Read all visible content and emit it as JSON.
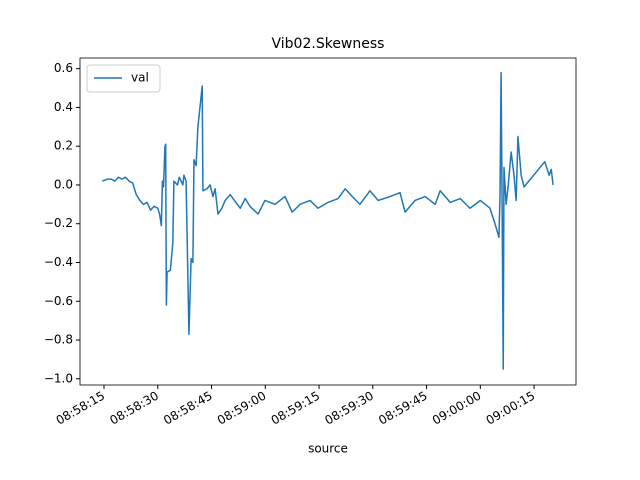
{
  "chart_data": {
    "type": "line",
    "title": "Vib02.Skewness",
    "xlabel": "source",
    "x": [
      32294.5,
      32296,
      32297,
      32298,
      32299,
      32300,
      32301,
      32302,
      32303,
      32304,
      32305,
      32306,
      32307,
      32308,
      32309,
      32310,
      32310.5,
      32311,
      32311.3,
      32311.6,
      32312,
      32312.2,
      32312.4,
      32312.6,
      32313.5,
      32314.2,
      32314.5,
      32315.5,
      32316,
      32317,
      32317.3,
      32317.9,
      32318.7,
      32319.3,
      32319.8,
      32320.1,
      32320.7,
      32321.2,
      32322.4,
      32322.6,
      32323.7,
      32324.6,
      32325.4,
      32326,
      32326.8,
      32327.9,
      32328.8,
      32330.2,
      32333,
      32334.4,
      32335.7,
      32338,
      32339.9,
      32342.7,
      32345.5,
      32347.5,
      32349.7,
      32352.5,
      32354.7,
      32357.5,
      32360.3,
      32362.3,
      32364.3,
      32366.4,
      32369.2,
      32371.5,
      32374.8,
      32377.6,
      32379,
      32381.8,
      32384.6,
      32387.4,
      32388.8,
      32391.6,
      32394.4,
      32397.1,
      32400,
      32402.7,
      32404.1,
      32405.2,
      32405.5,
      32405.8,
      32406.1,
      32406.4,
      32406.6,
      32407.2,
      32407.8,
      32408.6,
      32409.4,
      32410,
      32410.5,
      32411.4,
      32412.2,
      32418,
      32419.2,
      32419.8,
      32420.3
    ],
    "series": [
      {
        "name": "val",
        "color": "#1f77b4",
        "values": [
          0.02,
          0.03,
          0.03,
          0.02,
          0.04,
          0.03,
          0.04,
          0.02,
          0.01,
          -0.05,
          -0.08,
          -0.1,
          -0.09,
          -0.13,
          -0.11,
          -0.12,
          -0.15,
          -0.21,
          0.02,
          -0.01,
          0.2,
          0.21,
          -0.62,
          -0.45,
          -0.44,
          -0.3,
          0.02,
          0.0,
          0.04,
          0.0,
          0.05,
          0.02,
          -0.77,
          -0.38,
          -0.4,
          0.13,
          0.1,
          0.3,
          0.51,
          -0.03,
          -0.02,
          0.0,
          -0.06,
          -0.02,
          -0.15,
          -0.12,
          -0.08,
          -0.05,
          -0.12,
          -0.07,
          -0.11,
          -0.15,
          -0.08,
          -0.1,
          -0.06,
          -0.14,
          -0.1,
          -0.08,
          -0.12,
          -0.09,
          -0.07,
          -0.02,
          -0.06,
          -0.1,
          -0.03,
          -0.08,
          -0.06,
          -0.04,
          -0.14,
          -0.08,
          -0.06,
          -0.1,
          -0.03,
          -0.09,
          -0.07,
          -0.12,
          -0.08,
          -0.12,
          -0.2,
          -0.27,
          -0.05,
          0.58,
          -0.15,
          -0.95,
          0.09,
          -0.1,
          0.0,
          0.17,
          0.05,
          -0.08,
          0.25,
          0.05,
          -0.01,
          0.12,
          0.05,
          0.08,
          0.0
        ]
      }
    ],
    "xlim": [
      32288.3,
      32426.7
    ],
    "xticks": [
      {
        "value": 32295,
        "label": "08:58:15"
      },
      {
        "value": 32310,
        "label": "08:58:30"
      },
      {
        "value": 32325,
        "label": "08:58:45"
      },
      {
        "value": 32340,
        "label": "08:59:00"
      },
      {
        "value": 32355,
        "label": "08:59:15"
      },
      {
        "value": 32370,
        "label": "08:59:30"
      },
      {
        "value": 32385,
        "label": "08:59:45"
      },
      {
        "value": 32400,
        "label": "09:00:00"
      },
      {
        "value": 32415,
        "label": "09:00:15"
      }
    ],
    "ylim": [
      -1.032,
      0.655
    ],
    "yticks": [
      0.6,
      0.4,
      0.2,
      {
        "value": 0,
        "label": "0.0"
      },
      {
        "value": -0.2,
        "label": "−0.2"
      },
      {
        "value": -0.4,
        "label": "−0.4"
      },
      {
        "value": -0.6,
        "label": "−0.6"
      },
      {
        "value": -0.8,
        "label": "−0.8"
      },
      {
        "value": -1.0,
        "label": "−1.0"
      }
    ],
    "legend": "upper left"
  }
}
